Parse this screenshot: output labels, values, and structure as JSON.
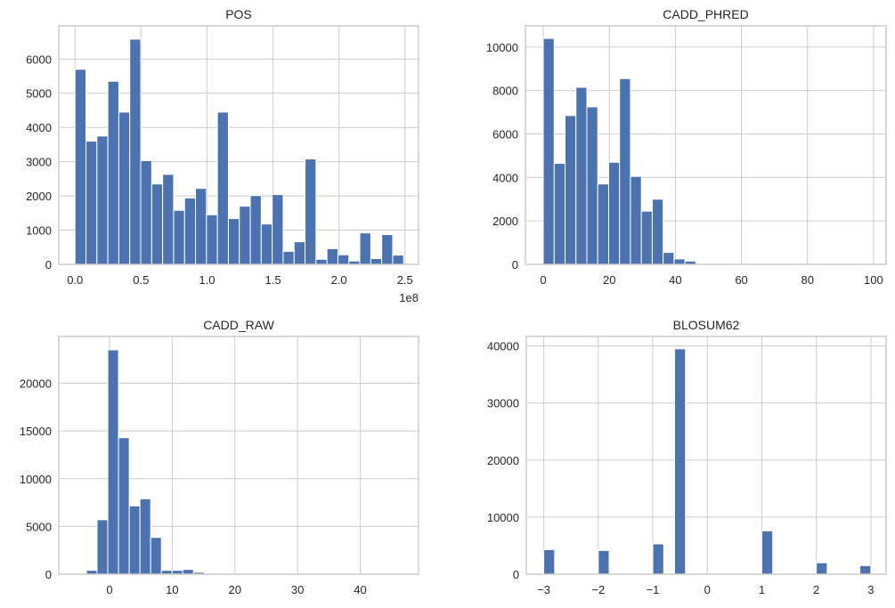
{
  "chart_data": [
    {
      "type": "bar",
      "title": "POS",
      "bin_start": 0.0,
      "bin_width": 0.083,
      "counts": [
        5700,
        3600,
        3750,
        5350,
        4450,
        6580,
        3030,
        2350,
        2630,
        1580,
        1940,
        2220,
        1450,
        4450,
        1340,
        1700,
        2010,
        1180,
        2040,
        380,
        660,
        3080,
        150,
        460,
        280,
        100,
        920,
        170,
        870,
        270
      ],
      "xlim": [
        -0.123,
        2.603
      ],
      "ylim": [
        0,
        6970
      ],
      "xticks": [
        0.0,
        0.5,
        1.0,
        1.5,
        2.0,
        2.5
      ],
      "xtick_labels": [
        "0.0",
        "0.5",
        "1.0",
        "1.5",
        "2.0",
        "2.5"
      ],
      "yticks": [
        0,
        1000,
        2000,
        3000,
        4000,
        5000,
        6000
      ],
      "ytick_labels": [
        "0",
        "1000",
        "2000",
        "3000",
        "4000",
        "5000",
        "6000"
      ],
      "x_offset_label": "1e8",
      "grid": true
    },
    {
      "type": "bar",
      "title": "CADD_PHRED",
      "bin_start": 0.0,
      "bin_width": 3.3,
      "counts": [
        10400,
        4650,
        6850,
        8150,
        7250,
        3700,
        4700,
        8550,
        4050,
        2450,
        3000,
        550,
        250,
        150,
        30,
        10,
        5,
        5,
        3,
        3,
        2,
        2,
        2,
        1,
        1,
        1,
        1,
        1,
        1,
        1
      ],
      "xlim": [
        -5.4,
        103.8
      ],
      "ylim": [
        0,
        10980
      ],
      "xticks": [
        0,
        20,
        40,
        60,
        80,
        100
      ],
      "xtick_labels": [
        "0",
        "20",
        "40",
        "60",
        "80",
        "100"
      ],
      "yticks": [
        0,
        2000,
        4000,
        6000,
        8000,
        10000
      ],
      "ytick_labels": [
        "0",
        "2000",
        "4000",
        "6000",
        "8000",
        "10000"
      ],
      "grid": true
    },
    {
      "type": "bar",
      "title": "CADD_RAW",
      "bin_start": -3.7,
      "bin_width": 1.71,
      "counts": [
        400,
        5700,
        23500,
        14300,
        7150,
        7900,
        3850,
        400,
        400,
        500,
        200,
        50,
        20,
        10,
        5,
        5,
        3,
        3,
        2,
        2,
        2,
        1,
        1,
        1,
        1,
        1,
        1,
        1,
        1,
        1
      ],
      "xlim": [
        -8.1,
        49.3
      ],
      "ylim": [
        0,
        24900
      ],
      "xticks": [
        0,
        10,
        20,
        30,
        40
      ],
      "xtick_labels": [
        "0",
        "10",
        "20",
        "30",
        "40"
      ],
      "yticks": [
        0,
        5000,
        10000,
        15000,
        20000
      ],
      "ytick_labels": [
        "0",
        "5000",
        "10000",
        "15000",
        "20000"
      ],
      "grid": true
    },
    {
      "type": "bar",
      "title": "BLOSUM62",
      "bin_start": -3.0,
      "bin_width": 0.2,
      "counts": [
        4300,
        0,
        0,
        0,
        0,
        4150,
        0,
        0,
        0,
        0,
        5300,
        0,
        39500,
        0,
        0,
        0,
        0,
        0,
        0,
        0,
        7600,
        0,
        0,
        0,
        0,
        2000,
        0,
        0,
        0,
        1500
      ],
      "xlim": [
        -3.32,
        3.28
      ],
      "ylim": [
        0,
        41660
      ],
      "xticks": [
        -3,
        -2,
        -1,
        0,
        1,
        2,
        3
      ],
      "xtick_labels": [
        "−3",
        "−2",
        "−1",
        "0",
        "1",
        "2",
        "3"
      ],
      "yticks": [
        0,
        10000,
        20000,
        30000,
        40000
      ],
      "ytick_labels": [
        "0",
        "10000",
        "20000",
        "30000",
        "40000"
      ],
      "grid": true
    }
  ],
  "colors": {
    "bar": "#4c72b0",
    "bar_edge": "#ffffff",
    "grid": "#cccccc",
    "spine": "#cccccc",
    "text": "#262626"
  }
}
